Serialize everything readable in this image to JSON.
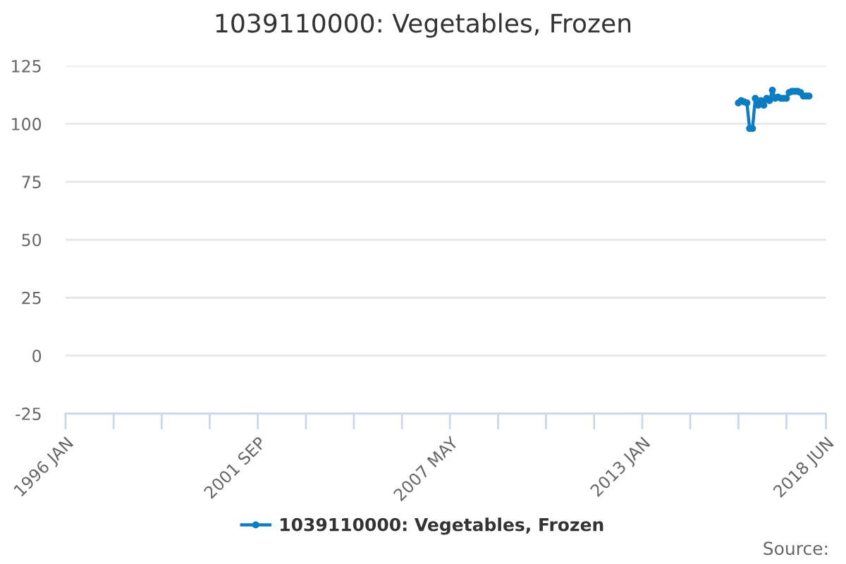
{
  "chart_data": {
    "type": "line",
    "title": "1039110000: Vegetables, Frozen",
    "x": [
      "2015-11",
      "2015-12",
      "2016-01",
      "2016-02",
      "2016-03",
      "2016-04",
      "2016-05",
      "2016-06",
      "2016-07",
      "2016-08",
      "2016-09",
      "2016-10",
      "2016-11",
      "2016-12",
      "2017-01",
      "2017-02",
      "2017-03",
      "2017-04",
      "2017-05",
      "2017-06",
      "2017-07",
      "2017-08",
      "2017-09",
      "2017-10",
      "2017-11",
      "2017-12"
    ],
    "series": [
      {
        "name": "1039110000: Vegetables, Frozen",
        "color": "#0d7dc1",
        "values": [
          109,
          110,
          109.5,
          109,
          98,
          98,
          111,
          108,
          110,
          108,
          111,
          110,
          114.5,
          111,
          111.5,
          111,
          111,
          111,
          113.5,
          114,
          114,
          114,
          113.5,
          112,
          112,
          112
        ]
      }
    ],
    "xlim": [
      "1996-01",
      "2018-06"
    ],
    "xticks": [
      {
        "value": "1996-01",
        "label": "1996 JAN"
      },
      {
        "value": "1997-06",
        "label": null
      },
      {
        "value": "1998-11",
        "label": null
      },
      {
        "value": "2000-04",
        "label": null
      },
      {
        "value": "2001-09",
        "label": "2001 SEP"
      },
      {
        "value": "2003-02",
        "label": null
      },
      {
        "value": "2004-07",
        "label": null
      },
      {
        "value": "2005-12",
        "label": null
      },
      {
        "value": "2007-05",
        "label": "2007 MAY"
      },
      {
        "value": "2008-10",
        "label": null
      },
      {
        "value": "2010-03",
        "label": null
      },
      {
        "value": "2011-08",
        "label": null
      },
      {
        "value": "2013-01",
        "label": "2013 JAN"
      },
      {
        "value": "2014-06",
        "label": null
      },
      {
        "value": "2015-11",
        "label": null
      },
      {
        "value": "2017-04",
        "label": null
      },
      {
        "value": "2018-06",
        "label": "2018 JUN"
      }
    ],
    "ylim": [
      -25,
      125
    ],
    "yticks": [
      -25,
      0,
      25,
      50,
      75,
      100,
      125
    ],
    "grid": "y",
    "legend": "bottom",
    "marker": "circle",
    "line_style": "solid",
    "annotations": [
      "Source:"
    ]
  }
}
